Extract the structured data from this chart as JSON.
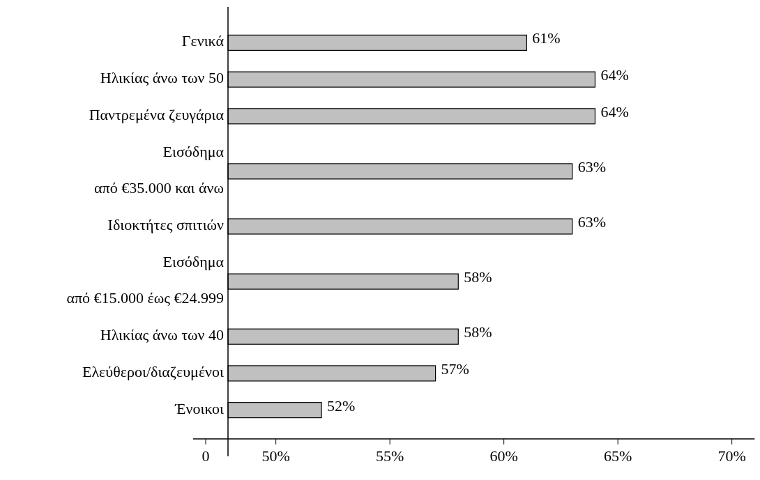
{
  "chart_data": {
    "type": "bar",
    "orientation": "horizontal",
    "categories": [
      "Γενικά",
      "Ηλικίας άνω των 50",
      "Παντρεμένα ζευγάρια",
      "Εισόδημα\nαπό €35.000 και άνω",
      "Ιδιοκτήτες σπιτιών",
      "Εισόδημα\nαπό €15.000 έως €24.999",
      "Ηλικίας άνω των 40",
      "Ελεύθεροι/διαζευμένοι",
      "Ένοικοι"
    ],
    "values": [
      61,
      64,
      64,
      63,
      63,
      58,
      58,
      57,
      52
    ],
    "value_labels": [
      "61%",
      "64%",
      "64%",
      "63%",
      "63%",
      "58%",
      "58%",
      "57%",
      "52%"
    ],
    "color": "#c0c0c0",
    "xlim": [
      47.9,
      71
    ],
    "annotations": [
      "0"
    ],
    "xticks": [
      {
        "value": 50,
        "label": "50%"
      },
      {
        "value": 55,
        "label": "55%"
      },
      {
        "value": 60,
        "label": "60%"
      },
      {
        "value": 65,
        "label": "65%"
      },
      {
        "value": 70,
        "label": "70%"
      }
    ],
    "grid": false
  }
}
